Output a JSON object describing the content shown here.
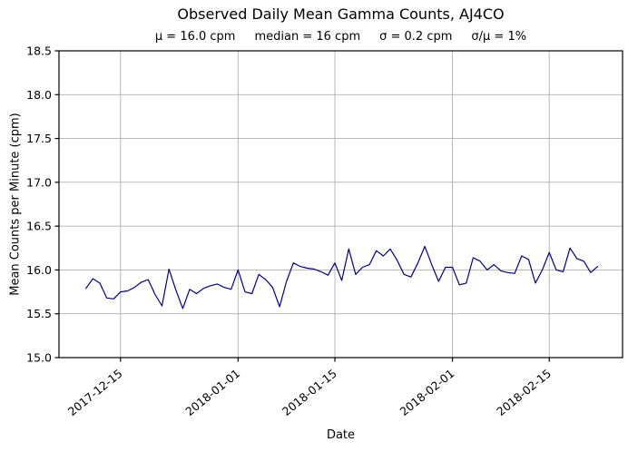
{
  "figure": {
    "title": "Observed Daily Mean Gamma Counts, AJ4CO",
    "stats": [
      "μ = 16.0 cpm",
      "median = 16 cpm",
      "σ = 0.2 cpm",
      "σ/μ = 1%"
    ],
    "xlabel": "Date",
    "ylabel": "Mean Counts per Minute (cpm)"
  },
  "chart_data": {
    "type": "line",
    "title": "Observed Daily Mean Gamma Counts, AJ4CO",
    "subtitle": "μ = 16.0 cpm    median = 16 cpm    σ = 0.2 cpm    σ/μ = 1%",
    "stats": {
      "mean_cpm": 16.0,
      "median_cpm": 16,
      "sigma_cpm": 0.2,
      "sigma_over_mean_pct": 1
    },
    "xlabel": "Date",
    "ylabel": "Mean Counts per Minute (cpm)",
    "ylim": [
      15.0,
      18.5
    ],
    "yticks": [
      15.0,
      15.5,
      16.0,
      16.5,
      17.0,
      17.5,
      18.0,
      18.5
    ],
    "ytick_labels": [
      "15.0",
      "15.5",
      "16.0",
      "16.5",
      "17.0",
      "17.5",
      "18.0",
      "18.5"
    ],
    "xticks": [
      {
        "label": "2017-12-15",
        "day": 5
      },
      {
        "label": "2018-01-01",
        "day": 22
      },
      {
        "label": "2018-01-15",
        "day": 36
      },
      {
        "label": "2018-02-01",
        "day": 53
      },
      {
        "label": "2018-02-15",
        "day": 67
      }
    ],
    "xlim_days": [
      -3.9,
      77.6
    ],
    "grid": true,
    "legend_position": "none",
    "line_color": "#00008b",
    "grid_color": "#b0b0b0",
    "dates": [
      "2017-12-10",
      "2017-12-11",
      "2017-12-12",
      "2017-12-13",
      "2017-12-14",
      "2017-12-15",
      "2017-12-16",
      "2017-12-17",
      "2017-12-18",
      "2017-12-19",
      "2017-12-20",
      "2017-12-21",
      "2017-12-22",
      "2017-12-23",
      "2017-12-24",
      "2017-12-25",
      "2017-12-26",
      "2017-12-27",
      "2017-12-28",
      "2017-12-29",
      "2017-12-30",
      "2017-12-31",
      "2018-01-01",
      "2018-01-02",
      "2018-01-03",
      "2018-01-04",
      "2018-01-05",
      "2018-01-06",
      "2018-01-07",
      "2018-01-08",
      "2018-01-09",
      "2018-01-10",
      "2018-01-11",
      "2018-01-12",
      "2018-01-13",
      "2018-01-14",
      "2018-01-15",
      "2018-01-16",
      "2018-01-17",
      "2018-01-18",
      "2018-01-19",
      "2018-01-20",
      "2018-01-21",
      "2018-01-22",
      "2018-01-23",
      "2018-01-24",
      "2018-01-25",
      "2018-01-26",
      "2018-01-27",
      "2018-01-28",
      "2018-01-29",
      "2018-01-30",
      "2018-01-31",
      "2018-02-01",
      "2018-02-02",
      "2018-02-03",
      "2018-02-04",
      "2018-02-05",
      "2018-02-06",
      "2018-02-07",
      "2018-02-08",
      "2018-02-09",
      "2018-02-10",
      "2018-02-11",
      "2018-02-12",
      "2018-02-13",
      "2018-02-14",
      "2018-02-15",
      "2018-02-16",
      "2018-02-17",
      "2018-02-18",
      "2018-02-19",
      "2018-02-20",
      "2018-02-21",
      "2018-02-22"
    ],
    "values": [
      15.79,
      15.9,
      15.85,
      15.68,
      15.67,
      15.75,
      15.76,
      15.8,
      15.86,
      15.89,
      15.72,
      15.59,
      16.01,
      15.77,
      15.56,
      15.78,
      15.73,
      15.79,
      15.82,
      15.84,
      15.8,
      15.78,
      16.0,
      15.75,
      15.73,
      15.95,
      15.89,
      15.8,
      15.58,
      15.87,
      16.08,
      16.04,
      16.02,
      16.01,
      15.98,
      15.94,
      16.08,
      15.88,
      16.24,
      15.95,
      16.03,
      16.06,
      16.22,
      16.16,
      16.24,
      16.11,
      15.95,
      15.92,
      16.08,
      16.27,
      16.06,
      15.87,
      16.03,
      16.03,
      15.83,
      15.85,
      16.14,
      16.1,
      16.0,
      16.06,
      15.99,
      15.97,
      15.96,
      16.16,
      16.12,
      15.85,
      16.0,
      16.2,
      16.0,
      15.98,
      16.25,
      16.13,
      16.1,
      15.97,
      16.04
    ]
  }
}
